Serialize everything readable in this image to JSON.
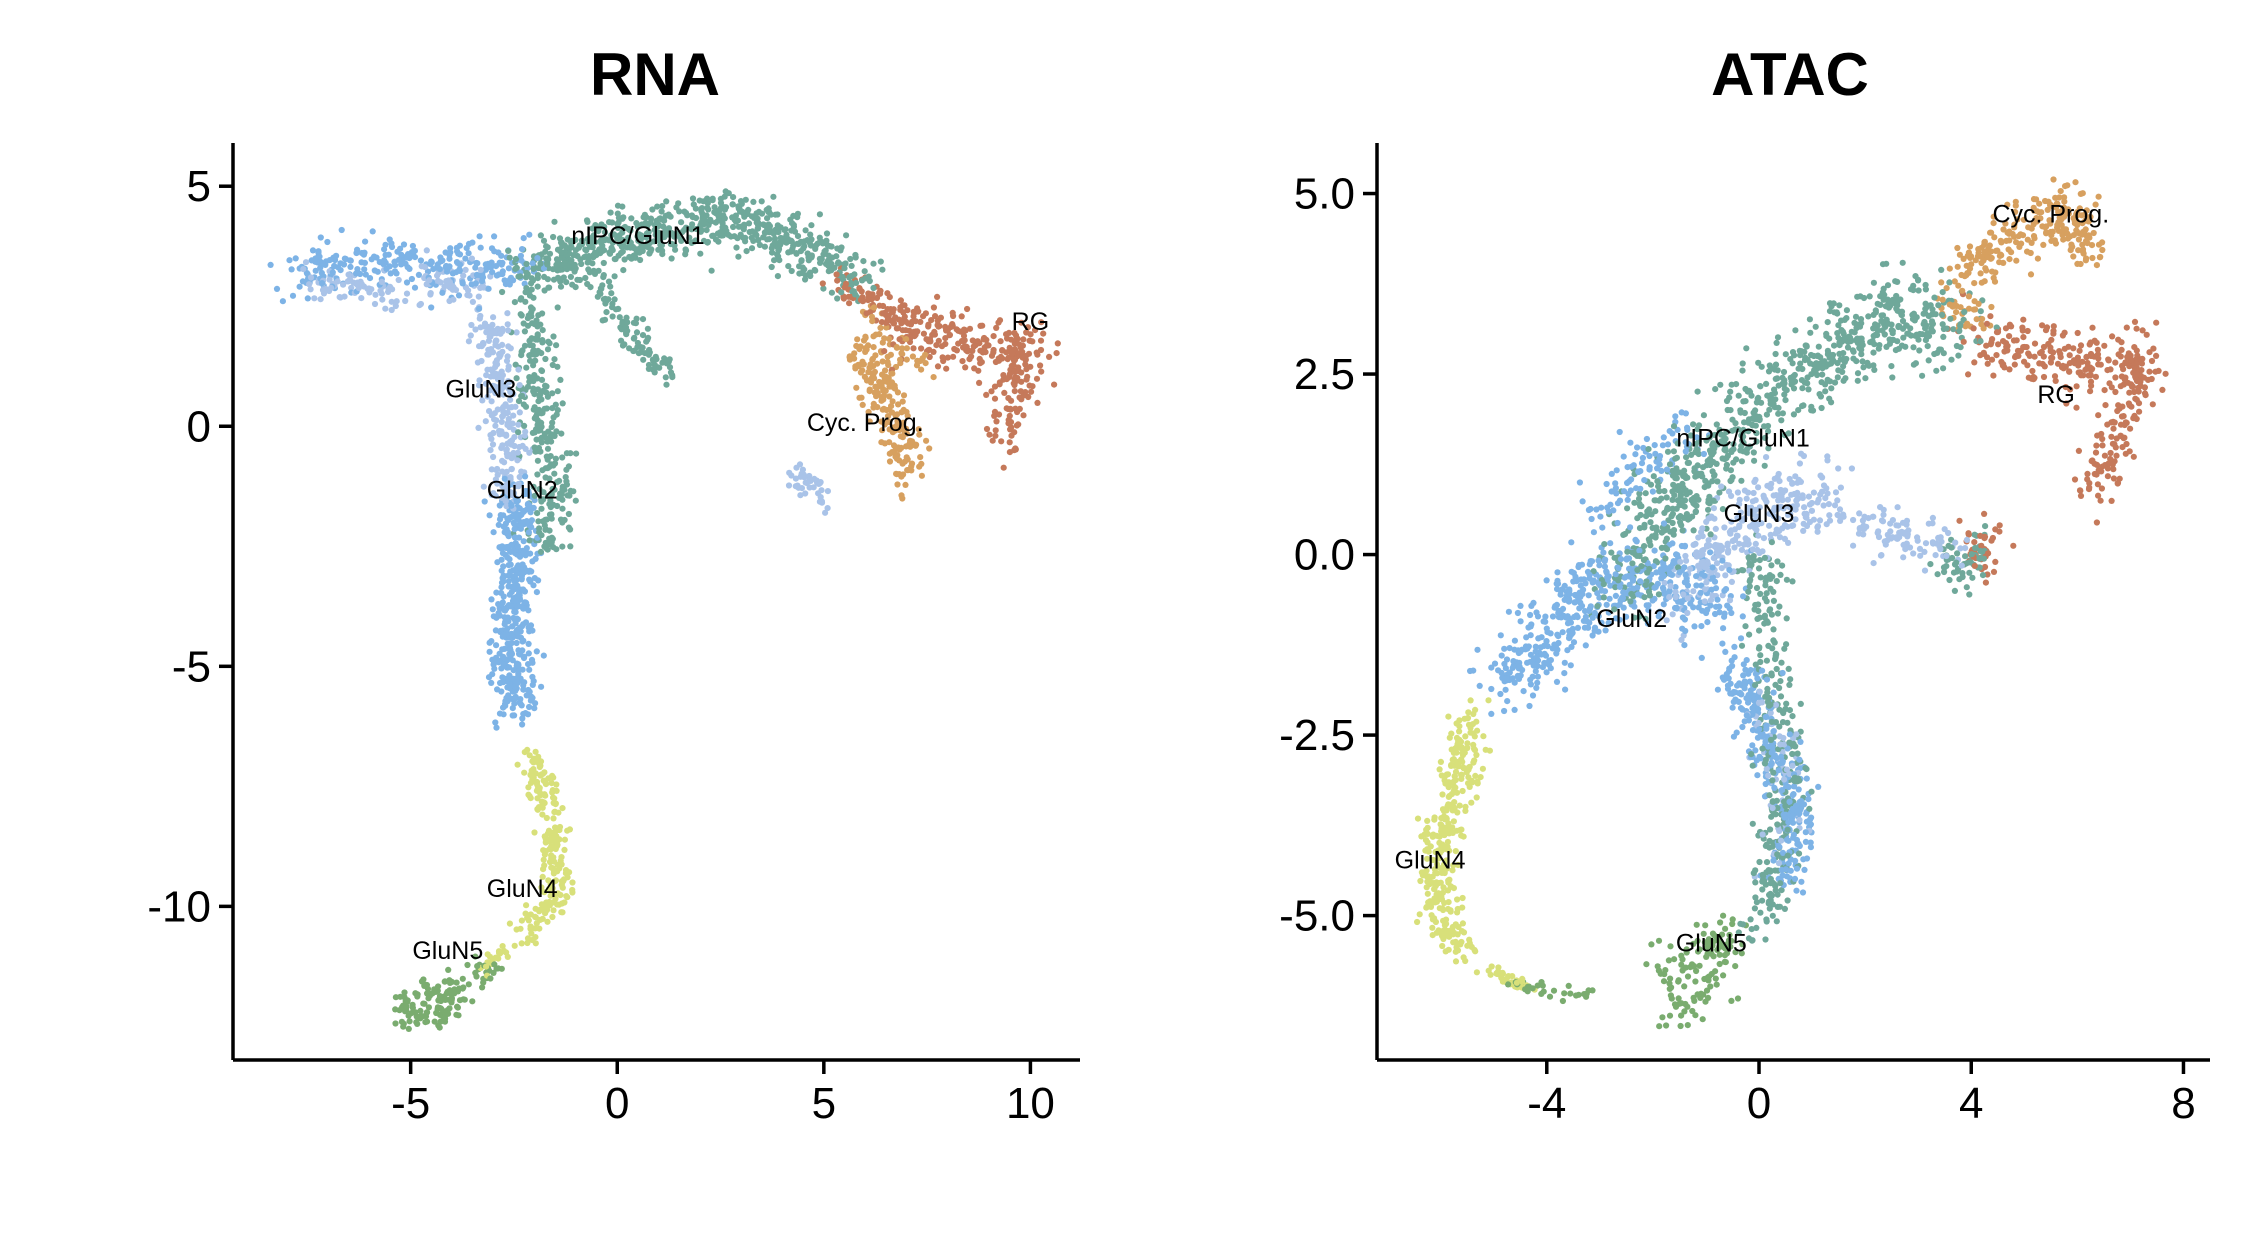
{
  "chart_data": [
    {
      "type": "scatter",
      "title": "RNA",
      "xlabel": "",
      "ylabel": "",
      "xlim": [
        -9.3,
        11.2
      ],
      "ylim": [
        -13.2,
        5.9
      ],
      "xticks": [
        {
          "value": -5,
          "label": "-5"
        },
        {
          "value": 0,
          "label": "0"
        },
        {
          "value": 5,
          "label": "5"
        },
        {
          "value": 10,
          "label": "10"
        }
      ],
      "yticks": [
        {
          "value": 5,
          "label": "5"
        },
        {
          "value": 0,
          "label": "0"
        },
        {
          "value": -5,
          "label": "-5"
        },
        {
          "value": -10,
          "label": "-10"
        }
      ],
      "grid": false,
      "legend": "none",
      "cluster_labels": [
        {
          "text": "nIPC/GluN1",
          "x": 0.5,
          "y": 3.8
        },
        {
          "text": "RG",
          "x": 10.0,
          "y": 2.0
        },
        {
          "text": "GluN3",
          "x": -3.3,
          "y": 0.6
        },
        {
          "text": "Cyc. Prog.",
          "x": 6.0,
          "y": -0.1
        },
        {
          "text": "GluN2",
          "x": -2.3,
          "y": -1.5
        },
        {
          "text": "GluN4",
          "x": -2.3,
          "y": -9.8
        },
        {
          "text": "GluN5",
          "x": -4.1,
          "y": -11.1
        }
      ],
      "series": [
        {
          "name": "nIPC/GluN1",
          "color": "#6fa89a",
          "paths": [
            {
              "n": 700,
              "spread": 0.5,
              "pts": [
                [
                  -2.2,
                  3.0
                ],
                [
                  -0.8,
                  3.7
                ],
                [
                  1.0,
                  4.0
                ],
                [
                  2.8,
                  4.4
                ],
                [
                  4.8,
                  3.6
                ],
                [
                  6.0,
                  2.9
                ]
              ]
            },
            {
              "n": 260,
              "spread": 0.45,
              "pts": [
                [
                  -2.0,
                  2.4
                ],
                [
                  -2.0,
                  0.8
                ],
                [
                  -1.5,
                  -0.8
                ],
                [
                  -1.8,
                  -2.6
                ]
              ]
            },
            {
              "n": 90,
              "spread": 0.3,
              "pts": [
                [
                  -0.6,
                  3.0
                ],
                [
                  0.3,
                  2.0
                ],
                [
                  1.2,
                  1.0
                ]
              ]
            }
          ]
        },
        {
          "name": "GluN3",
          "color": "#a9c3e8",
          "paths": [
            {
              "n": 230,
              "spread": 0.38,
              "pts": [
                [
                  -3.2,
                  2.2
                ],
                [
                  -2.8,
                  1.0
                ],
                [
                  -2.6,
                  -0.6
                ],
                [
                  -2.6,
                  -1.6
                ]
              ]
            },
            {
              "n": 130,
              "spread": 0.35,
              "pts": [
                [
                  -7.5,
                  3.0
                ],
                [
                  -6.0,
                  2.8
                ],
                [
                  -4.5,
                  3.0
                ],
                [
                  -3.2,
                  3.0
                ]
              ]
            },
            {
              "n": 40,
              "spread": 0.22,
              "pts": [
                [
                  4.3,
                  -1.0
                ],
                [
                  4.9,
                  -1.3
                ],
                [
                  5.0,
                  -1.7
                ]
              ]
            }
          ]
        },
        {
          "name": "GluN2",
          "color": "#7db3e6",
          "paths": [
            {
              "n": 430,
              "spread": 0.45,
              "pts": [
                [
                  -2.4,
                  -1.4
                ],
                [
                  -2.5,
                  -3.2
                ],
                [
                  -2.6,
                  -4.8
                ],
                [
                  -2.4,
                  -5.9
                ]
              ]
            },
            {
              "n": 260,
              "spread": 0.45,
              "pts": [
                [
                  -8.0,
                  3.1
                ],
                [
                  -6.5,
                  3.4
                ],
                [
                  -4.8,
                  3.4
                ],
                [
                  -3.2,
                  3.3
                ],
                [
                  -2.2,
                  3.4
                ]
              ]
            }
          ]
        },
        {
          "name": "GluN4",
          "color": "#d8e07a",
          "paths": [
            {
              "n": 220,
              "spread": 0.3,
              "pts": [
                [
                  -2.2,
                  -6.8
                ],
                [
                  -1.7,
                  -7.8
                ],
                [
                  -1.5,
                  -8.8
                ],
                [
                  -1.4,
                  -9.8
                ],
                [
                  -2.3,
                  -10.6
                ]
              ]
            },
            {
              "n": 20,
              "spread": 0.15,
              "pts": [
                [
                  -2.7,
                  -10.9
                ],
                [
                  -3.3,
                  -11.3
                ]
              ]
            }
          ]
        },
        {
          "name": "GluN5",
          "color": "#7aac6f",
          "paths": [
            {
              "n": 140,
              "spread": 0.25,
              "pts": [
                [
                  -2.9,
                  -11.3
                ],
                [
                  -4.0,
                  -11.7
                ],
                [
                  -5.0,
                  -11.9
                ],
                [
                  -5.3,
                  -12.3
                ],
                [
                  -4.3,
                  -12.2
                ],
                [
                  -3.6,
                  -11.9
                ]
              ]
            }
          ]
        },
        {
          "name": "Cyc. Prog.",
          "color": "#d7a05f",
          "paths": [
            {
              "n": 190,
              "spread": 0.4,
              "pts": [
                [
                  5.9,
                  1.6
                ],
                [
                  6.5,
                  0.6
                ],
                [
                  7.0,
                  -0.3
                ],
                [
                  6.9,
                  -0.9
                ]
              ]
            },
            {
              "n": 40,
              "spread": 0.3,
              "pts": [
                [
                  5.9,
                  2.7
                ],
                [
                  6.5,
                  1.7
                ],
                [
                  7.5,
                  1.3
                ]
              ]
            }
          ]
        },
        {
          "name": "RG",
          "color": "#c5795a",
          "paths": [
            {
              "n": 320,
              "spread": 0.5,
              "pts": [
                [
                  6.4,
                  2.4
                ],
                [
                  7.8,
                  1.8
                ],
                [
                  9.0,
                  1.6
                ],
                [
                  9.9,
                  1.7
                ],
                [
                  9.5,
                  0.0
                ],
                [
                  9.5,
                  -0.4
                ]
              ]
            },
            {
              "n": 50,
              "spread": 0.25,
              "pts": [
                [
                  5.2,
                  3.0
                ],
                [
                  6.1,
                  2.7
                ],
                [
                  6.7,
                  2.5
                ]
              ]
            }
          ]
        }
      ]
    },
    {
      "type": "scatter",
      "title": "ATAC",
      "xlabel": "",
      "ylabel": "",
      "xlim": [
        -7.2,
        8.5
      ],
      "ylim": [
        -7.0,
        5.7
      ],
      "xticks": [
        {
          "value": -4,
          "label": "-4"
        },
        {
          "value": 0,
          "label": "0"
        },
        {
          "value": 4,
          "label": "4"
        },
        {
          "value": 8,
          "label": "8"
        }
      ],
      "yticks": [
        {
          "value": 5,
          "label": "5.0"
        },
        {
          "value": 2.5,
          "label": "2.5"
        },
        {
          "value": 0,
          "label": "0.0"
        },
        {
          "value": -2.5,
          "label": "-2.5"
        },
        {
          "value": -5,
          "label": "-5.0"
        }
      ],
      "grid": false,
      "legend": "none",
      "cluster_labels": [
        {
          "text": "Cyc. Prog.",
          "x": 5.5,
          "y": 4.6
        },
        {
          "text": "RG",
          "x": 5.6,
          "y": 2.1
        },
        {
          "text": "nIPC/GluN1",
          "x": -0.3,
          "y": 1.5
        },
        {
          "text": "GluN3",
          "x": 0.0,
          "y": 0.45
        },
        {
          "text": "GluN2",
          "x": -2.4,
          "y": -1.0
        },
        {
          "text": "GluN4",
          "x": -6.2,
          "y": -4.35
        },
        {
          "text": "GluN5",
          "x": -0.9,
          "y": -5.5
        }
      ],
      "series": [
        {
          "name": "nIPC/GluN1",
          "color": "#6fa89a",
          "paths": [
            {
              "n": 780,
              "spread": 0.5,
              "pts": [
                [
                  -2.6,
                  -0.4
                ],
                [
                  -1.6,
                  0.8
                ],
                [
                  -0.3,
                  1.8
                ],
                [
                  1.2,
                  2.7
                ],
                [
                  2.5,
                  3.3
                ],
                [
                  3.7,
                  3.2
                ]
              ]
            },
            {
              "n": 300,
              "spread": 0.35,
              "pts": [
                [
                  0.0,
                  0.0
                ],
                [
                  0.2,
                  -1.5
                ],
                [
                  0.5,
                  -3.0
                ],
                [
                  0.3,
                  -4.5
                ],
                [
                  -0.1,
                  -5.2
                ]
              ]
            },
            {
              "n": 60,
              "spread": 0.25,
              "pts": [
                [
                  3.5,
                  0.0
                ],
                [
                  3.8,
                  -0.3
                ],
                [
                  4.2,
                  0.1
                ]
              ]
            }
          ]
        },
        {
          "name": "GluN3",
          "color": "#a9c3e8",
          "paths": [
            {
              "n": 300,
              "spread": 0.45,
              "pts": [
                [
                  -1.4,
                  -0.6
                ],
                [
                  -0.5,
                  0.3
                ],
                [
                  0.4,
                  0.8
                ],
                [
                  1.4,
                  0.6
                ]
              ]
            },
            {
              "n": 90,
              "spread": 0.3,
              "pts": [
                [
                  1.8,
                  0.4
                ],
                [
                  2.8,
                  0.2
                ],
                [
                  3.8,
                  0.1
                ]
              ]
            },
            {
              "n": 60,
              "spread": 0.35,
              "pts": [
                [
                  0.2,
                  -2.0
                ],
                [
                  0.5,
                  -3.5
                ],
                [
                  0.3,
                  -4.2
                ]
              ]
            }
          ]
        },
        {
          "name": "GluN2",
          "color": "#7db3e6",
          "paths": [
            {
              "n": 480,
              "spread": 0.48,
              "pts": [
                [
                  -4.8,
                  -1.8
                ],
                [
                  -3.8,
                  -1.0
                ],
                [
                  -2.7,
                  -0.3
                ],
                [
                  -1.6,
                  -0.4
                ],
                [
                  -0.6,
                  -0.6
                ]
              ]
            },
            {
              "n": 280,
              "spread": 0.35,
              "pts": [
                [
                  -0.5,
                  -1.6
                ],
                [
                  0.2,
                  -2.6
                ],
                [
                  0.7,
                  -3.5
                ],
                [
                  0.5,
                  -4.6
                ]
              ]
            },
            {
              "n": 90,
              "spread": 0.35,
              "pts": [
                [
                  -3.3,
                  0.5
                ],
                [
                  -2.2,
                  1.2
                ],
                [
                  -1.2,
                  1.6
                ]
              ]
            }
          ]
        },
        {
          "name": "GluN4",
          "color": "#d8e07a",
          "paths": [
            {
              "n": 330,
              "spread": 0.3,
              "pts": [
                [
                  -5.4,
                  -2.3
                ],
                [
                  -5.7,
                  -3.2
                ],
                [
                  -6.1,
                  -4.0
                ],
                [
                  -6.0,
                  -4.9
                ],
                [
                  -5.7,
                  -5.4
                ]
              ]
            },
            {
              "n": 35,
              "spread": 0.1,
              "pts": [
                [
                  -5.3,
                  -5.7
                ],
                [
                  -4.7,
                  -5.9
                ],
                [
                  -4.3,
                  -6.0
                ]
              ]
            }
          ]
        },
        {
          "name": "GluN5",
          "color": "#7aac6f",
          "paths": [
            {
              "n": 130,
              "spread": 0.28,
              "pts": [
                [
                  -1.9,
                  -5.8
                ],
                [
                  -1.1,
                  -5.6
                ],
                [
                  -0.6,
                  -5.2
                ],
                [
                  -0.9,
                  -6.1
                ],
                [
                  -1.6,
                  -6.3
                ]
              ]
            },
            {
              "n": 30,
              "spread": 0.1,
              "pts": [
                [
                  -4.7,
                  -5.9
                ],
                [
                  -3.8,
                  -6.1
                ],
                [
                  -3.0,
                  -6.1
                ]
              ]
            }
          ]
        },
        {
          "name": "Cyc. Prog.",
          "color": "#d7a05f",
          "paths": [
            {
              "n": 240,
              "spread": 0.33,
              "pts": [
                [
                  3.8,
                  3.7
                ],
                [
                  4.6,
                  4.3
                ],
                [
                  5.3,
                  4.6
                ],
                [
                  5.8,
                  4.8
                ],
                [
                  6.3,
                  4.1
                ]
              ]
            },
            {
              "n": 30,
              "spread": 0.2,
              "pts": [
                [
                  3.5,
                  3.4
                ],
                [
                  4.2,
                  3.2
                ]
              ]
            }
          ]
        },
        {
          "name": "RG",
          "color": "#c5795a",
          "paths": [
            {
              "n": 340,
              "spread": 0.35,
              "pts": [
                [
                  4.0,
                  2.9
                ],
                [
                  5.2,
                  2.8
                ],
                [
                  6.2,
                  2.6
                ],
                [
                  7.3,
                  2.8
                ],
                [
                  6.8,
                  1.8
                ],
                [
                  6.3,
                  0.9
                ]
              ]
            },
            {
              "n": 40,
              "spread": 0.2,
              "pts": [
                [
                  3.9,
                  0.3
                ],
                [
                  4.2,
                  -0.2
                ],
                [
                  4.5,
                  0.4
                ]
              ]
            }
          ]
        }
      ]
    }
  ]
}
